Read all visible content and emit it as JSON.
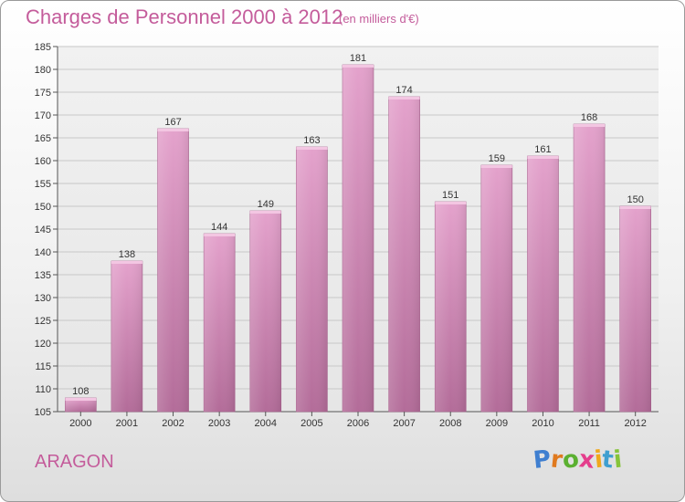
{
  "header": {
    "title": "Charges de Personnel 2000 à 2012",
    "subtitle": "(en milliers d'€)"
  },
  "footer": {
    "town": "ARAGON",
    "logo_letters": [
      "P",
      "r",
      "o",
      "x",
      "i",
      "t",
      "i"
    ],
    "logo_colors": [
      "#3f7fd0",
      "#e07a1f",
      "#5bb031",
      "#e43e8c",
      "#f0a81c",
      "#3f9fd0",
      "#86c43a"
    ]
  },
  "chart_data": {
    "type": "bar",
    "title": "Charges de Personnel 2000 à 2012",
    "subtitle": "(en milliers d'€)",
    "categories": [
      "2000",
      "2001",
      "2002",
      "2003",
      "2004",
      "2005",
      "2006",
      "2007",
      "2008",
      "2009",
      "2010",
      "2011",
      "2012"
    ],
    "values": [
      108,
      138,
      167,
      144,
      149,
      163,
      181,
      174,
      151,
      159,
      161,
      168,
      150
    ],
    "ylim": [
      105,
      185
    ],
    "yticks": [
      "105",
      "110",
      "115",
      "120",
      "125",
      "130",
      "135",
      "140",
      "145",
      "150",
      "155",
      "160",
      "165",
      "170",
      "175",
      "180",
      "185"
    ],
    "grid": true,
    "legend": "none",
    "bar_color": "#d98bbd",
    "bar_color_dark": "#b06a97"
  }
}
